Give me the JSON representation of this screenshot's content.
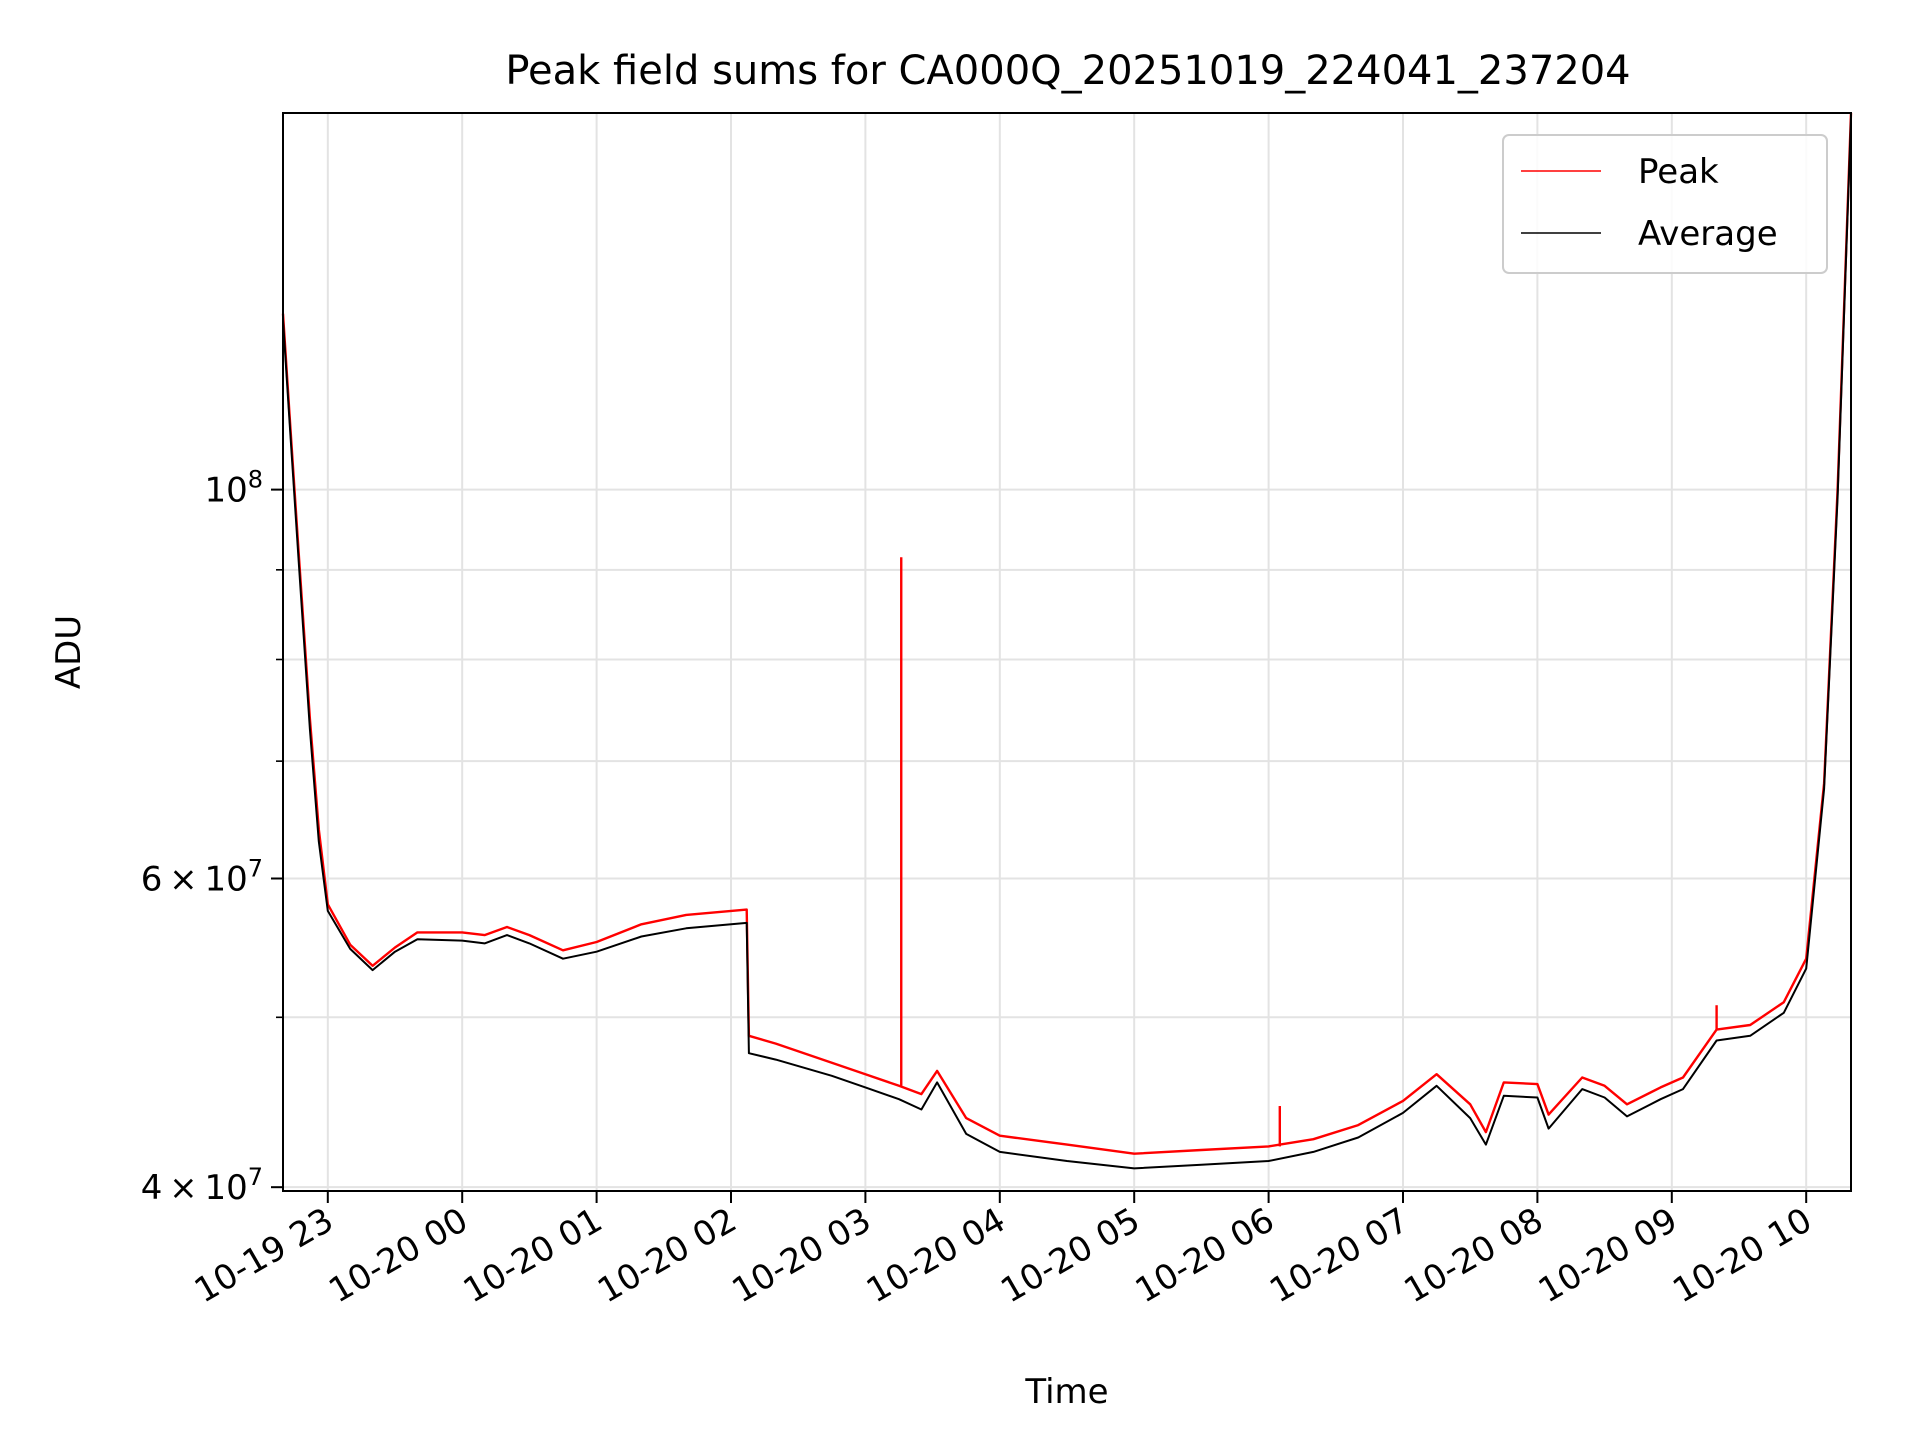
{
  "chart_data": {
    "type": "line",
    "title": "Peak field sums for CA000Q_20251019_224041_237204",
    "xlabel": "Time",
    "ylabel": "ADU",
    "yscale": "log",
    "ylim": [
      39800000,
      164000000
    ],
    "xlim": [
      "2025-10-19T22:40",
      "2025-10-20T10:20"
    ],
    "x_ticks": [
      {
        "t": "2025-10-19T23:00",
        "label": "10-19 23"
      },
      {
        "t": "2025-10-20T00:00",
        "label": "10-20 00"
      },
      {
        "t": "2025-10-20T01:00",
        "label": "10-20 01"
      },
      {
        "t": "2025-10-20T02:00",
        "label": "10-20 02"
      },
      {
        "t": "2025-10-20T03:00",
        "label": "10-20 03"
      },
      {
        "t": "2025-10-20T04:00",
        "label": "10-20 04"
      },
      {
        "t": "2025-10-20T05:00",
        "label": "10-20 05"
      },
      {
        "t": "2025-10-20T06:00",
        "label": "10-20 06"
      },
      {
        "t": "2025-10-20T07:00",
        "label": "10-20 07"
      },
      {
        "t": "2025-10-20T08:00",
        "label": "10-20 08"
      },
      {
        "t": "2025-10-20T09:00",
        "label": "10-20 09"
      },
      {
        "t": "2025-10-20T10:00",
        "label": "10-20 10"
      }
    ],
    "y_ticks": [
      {
        "value": 40000000,
        "base": "4",
        "exp": "7"
      },
      {
        "value": 60000000,
        "base": "6",
        "exp": "7"
      },
      {
        "value": 100000000,
        "base": "",
        "exp": "8"
      }
    ],
    "y_minor_ticks": [
      50000000,
      70000000,
      80000000,
      90000000
    ],
    "grid": true,
    "legend": "top-right",
    "series": [
      {
        "name": "Peak",
        "color": "#ff0000",
        "points": [
          [
            "2025-10-19T22:40",
            126000000
          ],
          [
            "2025-10-19T22:43",
            110000000
          ],
          [
            "2025-10-19T22:47",
            92000000
          ],
          [
            "2025-10-19T22:52",
            74000000
          ],
          [
            "2025-10-19T22:56",
            64000000
          ],
          [
            "2025-10-19T23:00",
            58000000
          ],
          [
            "2025-10-19T23:10",
            55000000
          ],
          [
            "2025-10-19T23:20",
            53500000
          ],
          [
            "2025-10-19T23:30",
            54800000
          ],
          [
            "2025-10-19T23:40",
            55900000
          ],
          [
            "2025-10-20T00:00",
            55900000
          ],
          [
            "2025-10-20T00:10",
            55700000
          ],
          [
            "2025-10-20T00:20",
            56300000
          ],
          [
            "2025-10-20T00:30",
            55700000
          ],
          [
            "2025-10-20T00:45",
            54600000
          ],
          [
            "2025-10-20T01:00",
            55200000
          ],
          [
            "2025-10-20T01:20",
            56500000
          ],
          [
            "2025-10-20T01:40",
            57200000
          ],
          [
            "2025-10-20T02:07",
            57600000
          ],
          [
            "2025-10-20T02:08",
            48800000
          ],
          [
            "2025-10-20T02:20",
            48300000
          ],
          [
            "2025-10-20T02:45",
            47100000
          ],
          [
            "2025-10-20T03:00",
            46400000
          ],
          [
            "2025-10-20T03:15",
            45700000
          ],
          [
            "2025-10-20T03:25",
            45200000
          ],
          [
            "2025-10-20T03:32",
            46600000
          ],
          [
            "2025-10-20T03:45",
            43800000
          ],
          [
            "2025-10-20T04:00",
            42800000
          ],
          [
            "2025-10-20T04:30",
            42300000
          ],
          [
            "2025-10-20T05:00",
            41800000
          ],
          [
            "2025-10-20T05:30",
            42000000
          ],
          [
            "2025-10-20T06:00",
            42200000
          ],
          [
            "2025-10-20T06:20",
            42600000
          ],
          [
            "2025-10-20T06:40",
            43400000
          ],
          [
            "2025-10-20T07:00",
            44800000
          ],
          [
            "2025-10-20T07:15",
            46400000
          ],
          [
            "2025-10-20T07:30",
            44600000
          ],
          [
            "2025-10-20T07:37",
            43000000
          ],
          [
            "2025-10-20T07:45",
            45900000
          ],
          [
            "2025-10-20T08:00",
            45800000
          ],
          [
            "2025-10-20T08:05",
            44000000
          ],
          [
            "2025-10-20T08:20",
            46200000
          ],
          [
            "2025-10-20T08:30",
            45700000
          ],
          [
            "2025-10-20T08:40",
            44600000
          ],
          [
            "2025-10-20T08:55",
            45600000
          ],
          [
            "2025-10-20T09:05",
            46200000
          ],
          [
            "2025-10-20T09:20",
            49200000
          ],
          [
            "2025-10-20T09:35",
            49500000
          ],
          [
            "2025-10-20T09:50",
            51000000
          ],
          [
            "2025-10-20T10:00",
            54000000
          ],
          [
            "2025-10-20T10:08",
            68000000
          ],
          [
            "2025-10-20T10:14",
            100000000
          ],
          [
            "2025-10-20T10:20",
            164000000
          ]
        ],
        "spikes": [
          [
            "2025-10-20T03:16",
            91500000
          ],
          [
            "2025-10-20T06:05",
            44500000
          ],
          [
            "2025-10-20T09:20",
            50800000
          ]
        ]
      },
      {
        "name": "Average",
        "color": "#000000",
        "points": [
          [
            "2025-10-19T22:40",
            125000000
          ],
          [
            "2025-10-19T22:43",
            109000000
          ],
          [
            "2025-10-19T22:47",
            91000000
          ],
          [
            "2025-10-19T22:52",
            73000000
          ],
          [
            "2025-10-19T22:56",
            63000000
          ],
          [
            "2025-10-19T23:00",
            57500000
          ],
          [
            "2025-10-19T23:10",
            54700000
          ],
          [
            "2025-10-19T23:20",
            53200000
          ],
          [
            "2025-10-19T23:30",
            54500000
          ],
          [
            "2025-10-19T23:40",
            55400000
          ],
          [
            "2025-10-20T00:00",
            55300000
          ],
          [
            "2025-10-20T00:10",
            55100000
          ],
          [
            "2025-10-20T00:20",
            55700000
          ],
          [
            "2025-10-20T00:30",
            55100000
          ],
          [
            "2025-10-20T00:45",
            54000000
          ],
          [
            "2025-10-20T01:00",
            54500000
          ],
          [
            "2025-10-20T01:20",
            55600000
          ],
          [
            "2025-10-20T01:40",
            56200000
          ],
          [
            "2025-10-20T02:07",
            56600000
          ],
          [
            "2025-10-20T02:08",
            47700000
          ],
          [
            "2025-10-20T02:20",
            47300000
          ],
          [
            "2025-10-20T02:45",
            46300000
          ],
          [
            "2025-10-20T03:00",
            45600000
          ],
          [
            "2025-10-20T03:15",
            44900000
          ],
          [
            "2025-10-20T03:25",
            44300000
          ],
          [
            "2025-10-20T03:32",
            45900000
          ],
          [
            "2025-10-20T03:45",
            42900000
          ],
          [
            "2025-10-20T04:00",
            41900000
          ],
          [
            "2025-10-20T04:30",
            41400000
          ],
          [
            "2025-10-20T05:00",
            41000000
          ],
          [
            "2025-10-20T05:30",
            41200000
          ],
          [
            "2025-10-20T06:00",
            41400000
          ],
          [
            "2025-10-20T06:20",
            41900000
          ],
          [
            "2025-10-20T06:40",
            42700000
          ],
          [
            "2025-10-20T07:00",
            44100000
          ],
          [
            "2025-10-20T07:15",
            45700000
          ],
          [
            "2025-10-20T07:30",
            43800000
          ],
          [
            "2025-10-20T07:37",
            42300000
          ],
          [
            "2025-10-20T07:45",
            45100000
          ],
          [
            "2025-10-20T08:00",
            45000000
          ],
          [
            "2025-10-20T08:05",
            43200000
          ],
          [
            "2025-10-20T08:20",
            45500000
          ],
          [
            "2025-10-20T08:30",
            45000000
          ],
          [
            "2025-10-20T08:40",
            43900000
          ],
          [
            "2025-10-20T08:55",
            44900000
          ],
          [
            "2025-10-20T09:05",
            45500000
          ],
          [
            "2025-10-20T09:20",
            48500000
          ],
          [
            "2025-10-20T09:35",
            48800000
          ],
          [
            "2025-10-20T09:50",
            50300000
          ],
          [
            "2025-10-20T10:00",
            53300000
          ],
          [
            "2025-10-20T10:08",
            67500000
          ],
          [
            "2025-10-20T10:14",
            99000000
          ],
          [
            "2025-10-20T10:20",
            163000000
          ]
        ]
      }
    ]
  }
}
